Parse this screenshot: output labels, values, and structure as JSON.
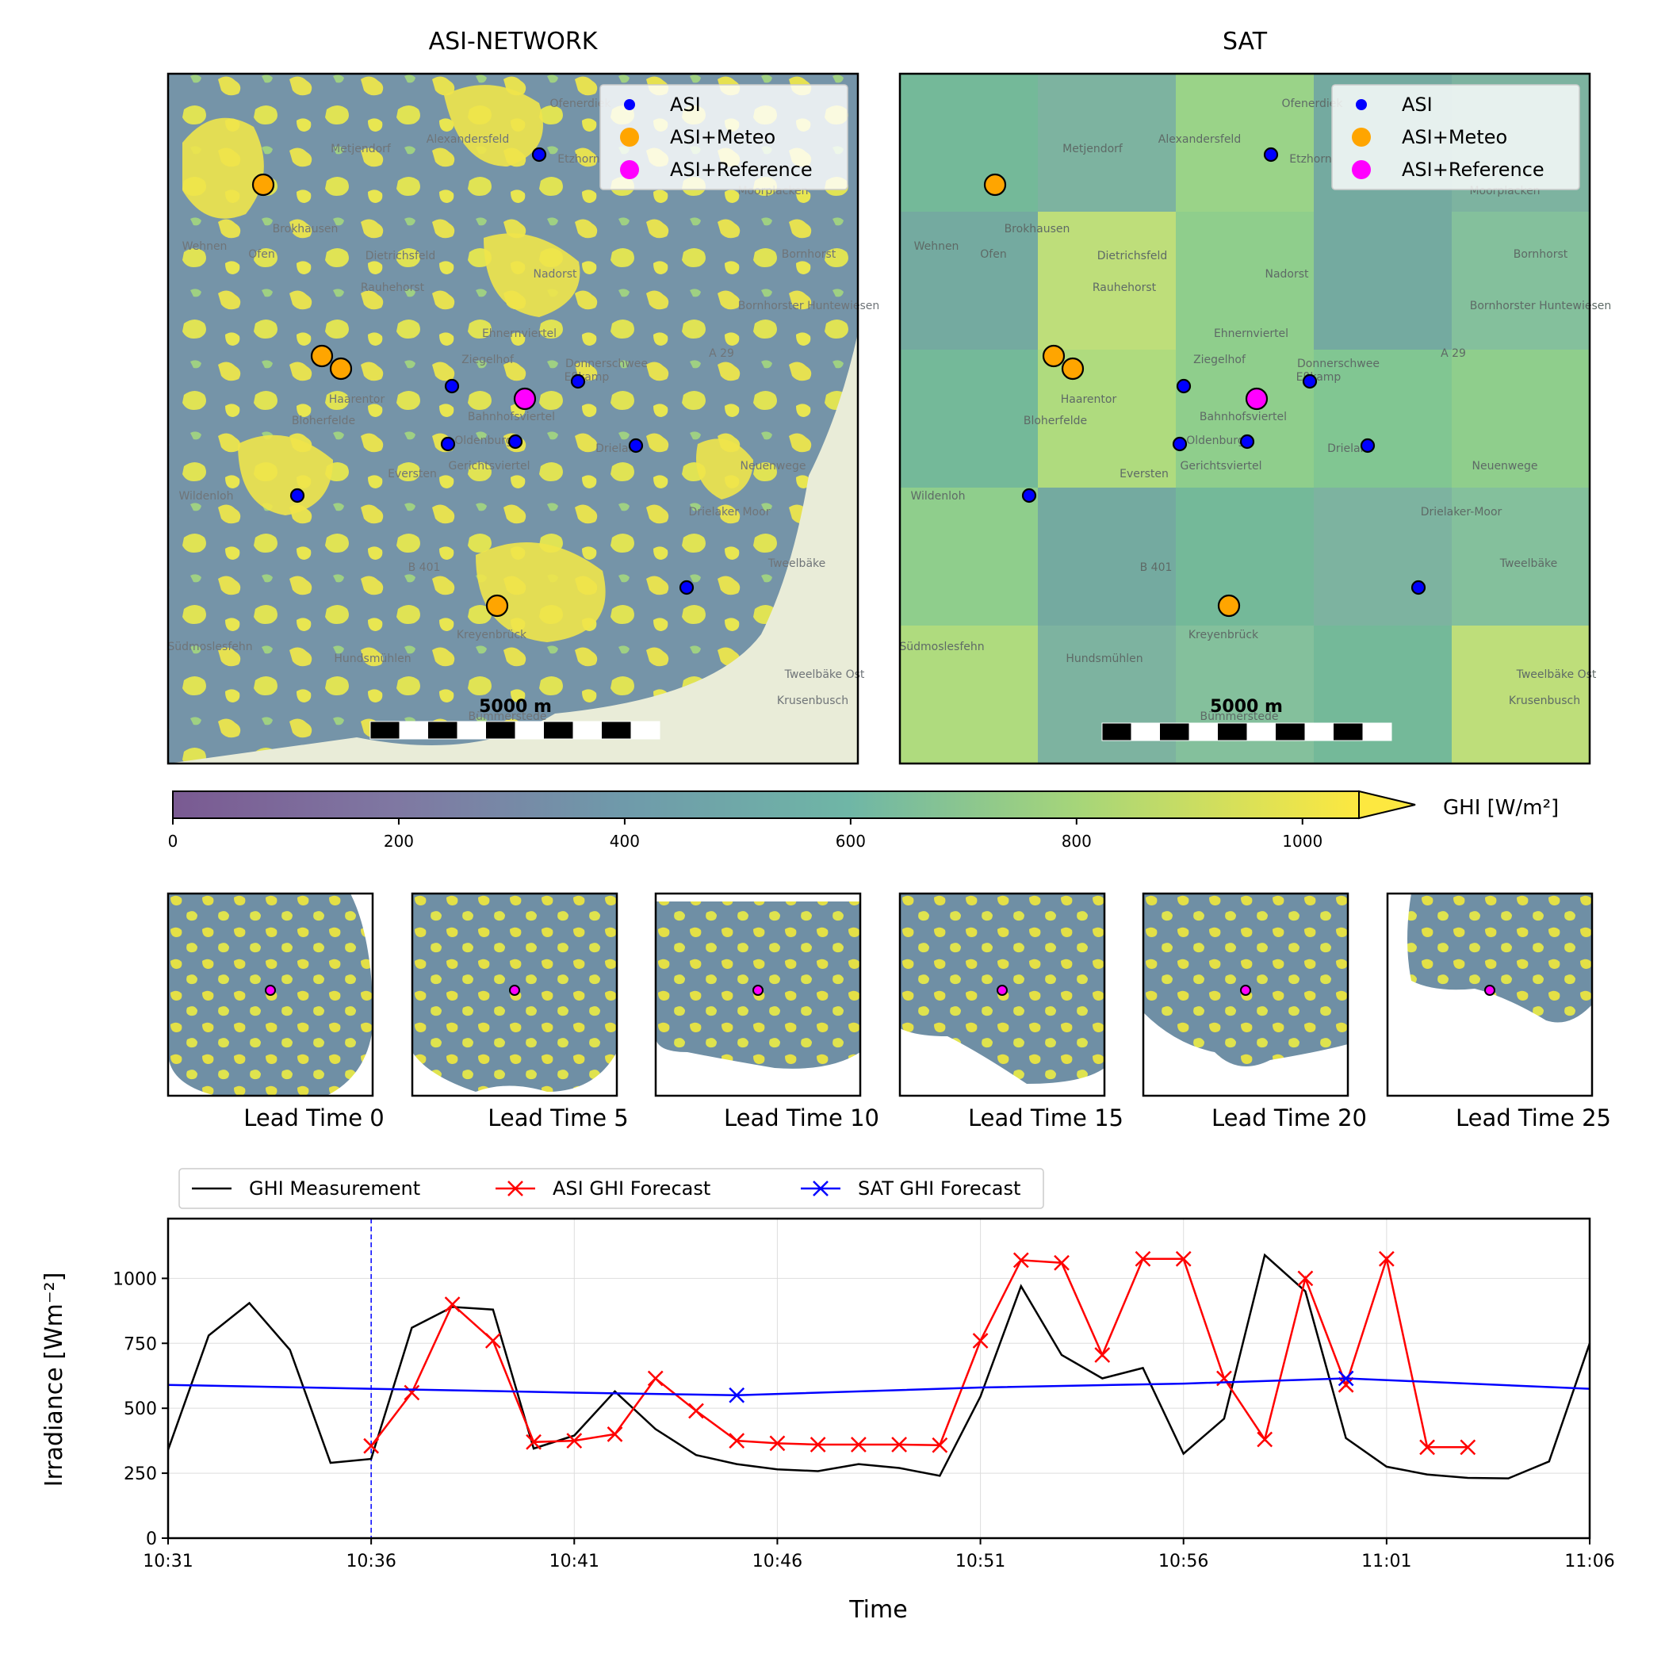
{
  "colors": {
    "ghi_low": "#7a5a92",
    "ghi_mid": "#6fb6a6",
    "ghi_high": "#fde840",
    "cloud_cover": "#6f8fa5",
    "asi_dot": "#0000ff",
    "meteo_dot": "#ffa500",
    "reference_dot": "#ff00ff",
    "measurement_line": "#000000",
    "asi_forecast": "#ff0000",
    "sat_forecast": "#0000ff",
    "map_bg": "#e9ecd8"
  },
  "maps": [
    {
      "title": "ASI-NETWORK",
      "scalebar_label": "5000 m",
      "place_labels": [
        "Ofenerdiek",
        "Metjendorf",
        "Alexandersfeld",
        "Etzhorn",
        "Moorplacken",
        "Brokhausen",
        "Wehnen",
        "Ofen",
        "Dietrichsfeld",
        "Nadorst",
        "Bornhorst",
        "Rauhehorst",
        "Bornhorster Huntewiesen",
        "Ehnernviertel",
        "Ziegelhof",
        "Donnerschwee",
        "Eßkamp",
        "Haarentor",
        "Bahnhofsviertel",
        "Bloherfelde",
        "Oldenburg",
        "Drielake",
        "Gerichtsviertel",
        "Neuenwege",
        "Eversten",
        "Wildenloh",
        "Drielaker Moor",
        "Tweelbäke",
        "Kreyenbrück",
        "Südmoslesfehn",
        "Hundsmühlen",
        "Krusenbusch",
        "Bümmerstede",
        "Tweelbäke Ost",
        "A 29",
        "B 401"
      ]
    },
    {
      "title": "SAT",
      "scalebar_label": "5000 m",
      "place_labels": [
        "Ofenerdiek",
        "Metjendorf",
        "Alexandersfeld",
        "Etzhorn",
        "Moorplacken",
        "Brokhausen",
        "Wehnen",
        "Ofen",
        "Dietrichsfeld",
        "Nadorst",
        "Bornhorst",
        "Rauhehorst",
        "Bornhorster Huntewiesen",
        "Ehnernviertel",
        "Ziegelhof",
        "Donnerschwee",
        "Eßkamp",
        "Haarentor",
        "Bahnhofsviertel",
        "Bloherfelde",
        "Oldenburg",
        "Drielake",
        "Gerichtsviertel",
        "Neuenwege",
        "Eversten",
        "Wildenloh",
        "Drielaker-Moor",
        "Tweelbäke",
        "Kreyenbrück",
        "Südmoslesfehn",
        "Hundsmühlen",
        "Krusenbusch",
        "Bümmerstede",
        "Tweelbäke Ost",
        "A 29",
        "B 401"
      ]
    }
  ],
  "map_legend": [
    {
      "label": "ASI",
      "kind": "asi"
    },
    {
      "label": "ASI+Meteo",
      "kind": "meteo"
    },
    {
      "label": "ASI+Reference",
      "kind": "reference"
    }
  ],
  "colorbar": {
    "label": "GHI [W/m²]",
    "ticks": [
      "0",
      "200",
      "400",
      "600",
      "800",
      "1000"
    ],
    "min": 0,
    "max": 1050
  },
  "lead_time_panels": [
    "Lead Time 0",
    "Lead Time 5",
    "Lead Time 10",
    "Lead Time 15",
    "Lead Time 20",
    "Lead Time 25"
  ],
  "chart_data": {
    "type": "line",
    "ylabel": "Irradiance [Wm⁻²]",
    "xlabel": "Time",
    "ylim": [
      0,
      1230
    ],
    "yticks": [
      0,
      250,
      500,
      750,
      1000
    ],
    "xticks": [
      "10:31",
      "10:36",
      "10:41",
      "10:46",
      "10:51",
      "10:56",
      "11:01",
      "11:06"
    ],
    "x_range": [
      "10:31",
      "11:06"
    ],
    "forecast_start": "10:36",
    "grid": true,
    "legend_placement": "top-left, above plot",
    "series": [
      {
        "name": "GHI Measurement",
        "points": [
          [
            "10:31",
            340
          ],
          [
            "10:32",
            780
          ],
          [
            "10:33",
            905
          ],
          [
            "10:34",
            725
          ],
          [
            "10:35",
            290
          ],
          [
            "10:36",
            305
          ],
          [
            "10:37",
            810
          ],
          [
            "10:38",
            890
          ],
          [
            "10:39",
            880
          ],
          [
            "10:40",
            345
          ],
          [
            "10:41",
            395
          ],
          [
            "10:42",
            565
          ],
          [
            "10:43",
            420
          ],
          [
            "10:44",
            320
          ],
          [
            "10:45",
            285
          ],
          [
            "10:46",
            265
          ],
          [
            "10:47",
            258
          ],
          [
            "10:48",
            285
          ],
          [
            "10:49",
            270
          ],
          [
            "10:50",
            240
          ],
          [
            "10:51",
            545
          ],
          [
            "10:52",
            970
          ],
          [
            "10:53",
            705
          ],
          [
            "10:54",
            615
          ],
          [
            "10:55",
            655
          ],
          [
            "10:56",
            325
          ],
          [
            "10:57",
            460
          ],
          [
            "10:58",
            1090
          ],
          [
            "10:59",
            950
          ],
          [
            "11:00",
            385
          ],
          [
            "11:01",
            275
          ],
          [
            "11:02",
            245
          ],
          [
            "11:03",
            232
          ],
          [
            "11:04",
            230
          ],
          [
            "11:05",
            295
          ],
          [
            "11:06",
            750
          ]
        ]
      },
      {
        "name": "ASI GHI Forecast",
        "points": [
          [
            "10:36",
            355
          ],
          [
            "10:37",
            560
          ],
          [
            "10:38",
            900
          ],
          [
            "10:39",
            760
          ],
          [
            "10:40",
            370
          ],
          [
            "10:41",
            375
          ],
          [
            "10:42",
            400
          ],
          [
            "10:43",
            615
          ],
          [
            "10:44",
            490
          ],
          [
            "10:45",
            375
          ],
          [
            "10:46",
            365
          ],
          [
            "10:47",
            360
          ],
          [
            "10:48",
            360
          ],
          [
            "10:49",
            360
          ],
          [
            "10:50",
            358
          ],
          [
            "10:51",
            760
          ],
          [
            "10:52",
            1070
          ],
          [
            "10:53",
            1060
          ],
          [
            "10:54",
            705
          ],
          [
            "10:55",
            1075
          ],
          [
            "10:56",
            1075
          ],
          [
            "10:57",
            615
          ],
          [
            "10:58",
            380
          ],
          [
            "10:59",
            1000
          ],
          [
            "11:00",
            590
          ],
          [
            "11:01",
            1075
          ],
          [
            "11:02",
            350
          ],
          [
            "11:03",
            350
          ]
        ]
      },
      {
        "name": "SAT GHI Forecast",
        "points": [
          [
            "10:31",
            590
          ],
          [
            "10:36",
            575
          ],
          [
            "10:41",
            560
          ],
          [
            "10:45",
            550
          ],
          [
            "10:51",
            580
          ],
          [
            "10:56",
            595
          ],
          [
            "11:00",
            615
          ],
          [
            "11:06",
            575
          ]
        ],
        "markers": [
          [
            "10:45",
            550
          ],
          [
            "11:00",
            615
          ]
        ]
      }
    ]
  }
}
